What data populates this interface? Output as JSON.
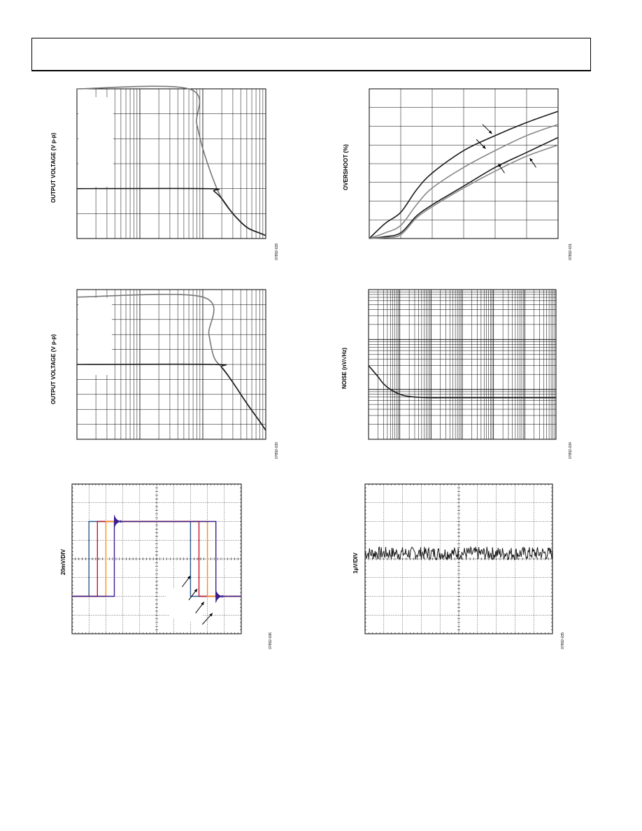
{
  "chart_data": [
    {
      "id": "chart1",
      "type": "line",
      "x_scale": "log",
      "xlim": [
        1,
        1000
      ],
      "ylim": [
        0,
        6
      ],
      "ylabel": "OUTPUT VOLTAGE (V p-p)",
      "fig_id": "07892-029",
      "series": [
        {
          "color": "#777777",
          "x": [
            1,
            60,
            80,
            100,
            150,
            200,
            300,
            500,
            800,
            1000
          ],
          "y": [
            6.0,
            6.0,
            4.6,
            3.6,
            2.3,
            1.6,
            1.0,
            0.45,
            0.22,
            0.12
          ]
        },
        {
          "color": "#1a1a1a",
          "x": [
            1,
            120,
            150,
            200,
            300,
            500,
            800,
            1000
          ],
          "y": [
            2.0,
            2.0,
            1.9,
            1.6,
            1.0,
            0.45,
            0.22,
            0.12
          ]
        }
      ]
    },
    {
      "id": "chart2",
      "type": "line",
      "xlim": [
        0,
        6
      ],
      "ylim": [
        0,
        8
      ],
      "ylabel": "OVERSHOOT (%)",
      "fig_id": "07892-031",
      "series": [
        {
          "color": "#1a1a1a",
          "x": [
            0,
            0.5,
            1,
            1.5,
            2,
            3,
            4,
            5,
            6
          ],
          "y": [
            0,
            0.8,
            1.4,
            2.6,
            3.5,
            4.7,
            5.5,
            6.2,
            6.8
          ]
        },
        {
          "color": "#888888",
          "x": [
            0,
            0.5,
            1,
            1.5,
            2,
            3,
            4,
            5,
            6
          ],
          "y": [
            0,
            0.3,
            0.7,
            1.8,
            2.7,
            3.8,
            4.7,
            5.5,
            6.1
          ]
        },
        {
          "color": "#1a1a1a",
          "x": [
            0,
            0.5,
            1,
            1.5,
            2,
            3,
            4,
            5,
            6
          ],
          "y": [
            0,
            0.1,
            0.3,
            1.2,
            1.8,
            2.8,
            3.8,
            4.6,
            5.4
          ]
        },
        {
          "color": "#888888",
          "x": [
            0,
            0.5,
            1,
            1.5,
            2,
            3,
            4,
            5,
            6
          ],
          "y": [
            0,
            0.05,
            0.2,
            1.1,
            1.7,
            2.7,
            3.6,
            4.4,
            5.0
          ]
        }
      ],
      "arrows": [
        {
          "x": [
            3.6,
            3.9
          ],
          "y": [
            6.1,
            5.6
          ]
        },
        {
          "x": [
            3.4,
            3.7
          ],
          "y": [
            5.3,
            4.8
          ]
        },
        {
          "x": [
            4.3,
            4.1
          ],
          "y": [
            3.5,
            4.0
          ]
        },
        {
          "x": [
            5.3,
            5.1
          ],
          "y": [
            3.8,
            4.3
          ]
        }
      ]
    },
    {
      "id": "chart3",
      "type": "line",
      "x_scale": "log",
      "xlim": [
        1,
        1000
      ],
      "ylim": [
        0,
        10
      ],
      "ylabel": "OUTPUT VOLTAGE (V p-p)",
      "fig_id": "07892-030",
      "series": [
        {
          "color": "#777777",
          "x": [
            1,
            100,
            125,
            150,
            200,
            300,
            500,
            800,
            1000
          ],
          "y": [
            9.5,
            9.5,
            7.0,
            5.5,
            4.8,
            3.8,
            2.4,
            1.2,
            0.6
          ]
        },
        {
          "color": "#1a1a1a",
          "x": [
            1,
            150,
            200,
            300,
            500,
            800,
            1000
          ],
          "y": [
            5.0,
            5.0,
            4.8,
            3.8,
            2.4,
            1.2,
            0.6
          ]
        }
      ]
    },
    {
      "id": "chart4",
      "type": "line",
      "x_scale": "log",
      "y_scale": "log",
      "xlim": [
        1,
        1000000
      ],
      "ylim": [
        1,
        1000
      ],
      "ylabel": "NOISE (nV/√Hz)",
      "fig_id": "07892-034",
      "series": [
        {
          "color": "#1a1a1a",
          "x": [
            1,
            2,
            3,
            5,
            10,
            20,
            50,
            100,
            1000,
            1000000
          ],
          "y": [
            30,
            18,
            13,
            10,
            8.0,
            7.2,
            6.9,
            6.8,
            6.8,
            6.8
          ]
        }
      ]
    },
    {
      "id": "chart5",
      "type": "line",
      "xlim": [
        0,
        10
      ],
      "ylim": [
        -4,
        4
      ],
      "ylabel": "20mV/DIV",
      "fig_id": "07892-036",
      "series": [
        {
          "color": "#2b5b8f",
          "x": [
            0,
            1.0,
            1.0,
            7.0,
            7.0,
            10
          ],
          "y": [
            -2,
            -2,
            2,
            2,
            -2,
            -2
          ]
        },
        {
          "color": "#c0182c",
          "x": [
            0,
            1.5,
            1.5,
            7.5,
            7.5,
            10
          ],
          "y": [
            -2,
            -2,
            2,
            2,
            -2,
            -2
          ]
        },
        {
          "color": "#ff8c1a",
          "x": [
            0,
            2.0,
            2.0,
            8.0,
            8.0,
            10
          ],
          "y": [
            -2,
            -2,
            2,
            2,
            -2,
            -2
          ]
        },
        {
          "color": "#3b1d8f",
          "x": [
            0,
            2.5,
            2.5,
            8.5,
            8.5,
            10
          ],
          "y": [
            -2,
            -2,
            2,
            2,
            -2,
            -2
          ]
        }
      ],
      "ringing": [
        {
          "color": "#3b1d8f",
          "x": 2.5,
          "level": 2,
          "dir": 1
        },
        {
          "color": "#3b1d8f",
          "x": 8.5,
          "level": -2,
          "dir": -1
        }
      ],
      "arrows": [
        {
          "x": [
            6.5,
            7.0
          ],
          "y": [
            -1.5,
            -0.9
          ]
        },
        {
          "x": [
            6.9,
            7.4
          ],
          "y": [
            -2.2,
            -1.6
          ]
        },
        {
          "x": [
            7.3,
            7.8
          ],
          "y": [
            -2.9,
            -2.3
          ]
        },
        {
          "x": [
            7.7,
            8.3
          ],
          "y": [
            -3.5,
            -2.9
          ]
        }
      ]
    },
    {
      "id": "chart6",
      "type": "line",
      "xlim": [
        0,
        10
      ],
      "ylim": [
        -4,
        4
      ],
      "ylabel": "1µV/DIV",
      "fig_id": "07892-035",
      "series": [
        {
          "color": "#1a1a1a",
          "noise": {
            "level": 0.3,
            "amplitude": 0.35,
            "points": 300,
            "seed": 7
          }
        }
      ]
    }
  ]
}
